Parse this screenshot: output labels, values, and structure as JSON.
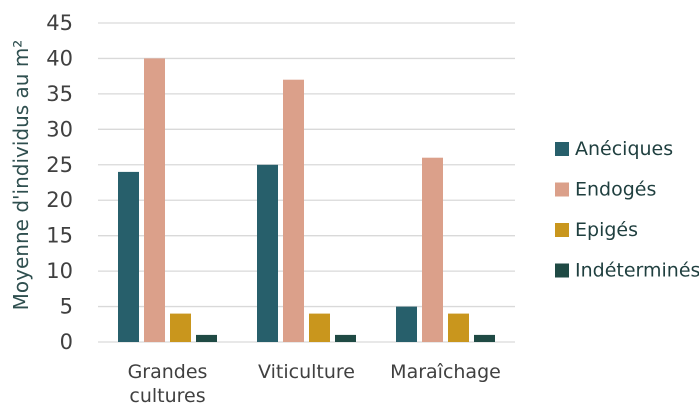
{
  "chart_data": {
    "type": "bar",
    "xlabel": "",
    "ylabel": "Moyenne d'individus au m²",
    "ylim": [
      0,
      45
    ],
    "yticks": [
      "0",
      "5",
      "10",
      "15",
      "20",
      "25",
      "30",
      "35",
      "40",
      "45"
    ],
    "grid": true,
    "legend_position": "right",
    "categories": [
      [
        "Grandes",
        "cultures"
      ],
      [
        "Viticulture"
      ],
      [
        "Maraîchage"
      ]
    ],
    "series": [
      {
        "name": "Anéciques",
        "color": "#275f6b",
        "values": [
          24,
          25,
          5
        ]
      },
      {
        "name": "Endogés",
        "color": "#dba08a",
        "values": [
          40,
          37,
          26
        ]
      },
      {
        "name": "Epigés",
        "color": "#c9961d",
        "values": [
          4,
          4,
          4
        ]
      },
      {
        "name": "Indéterminés",
        "color": "#1f4a44",
        "values": [
          1,
          1,
          1
        ]
      }
    ]
  }
}
